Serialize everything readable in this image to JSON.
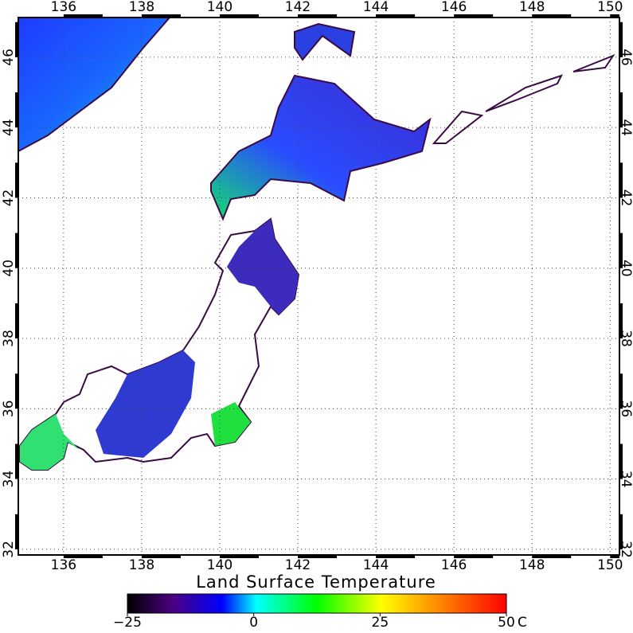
{
  "map": {
    "title": "Land Surface Temperature",
    "xlim": [
      134.84,
      150.24
    ],
    "ylim": [
      31.84,
      47.13
    ],
    "xticks": [
      136,
      138,
      140,
      142,
      144,
      146,
      148,
      150
    ],
    "yticks": [
      32,
      34,
      36,
      38,
      40,
      42,
      44,
      46
    ],
    "grid": true
  },
  "colorbar": {
    "range": [
      -25,
      50
    ],
    "ticks": [
      {
        "value": -25,
        "label": "−25"
      },
      0,
      25,
      50
    ],
    "unit": "C"
  }
}
